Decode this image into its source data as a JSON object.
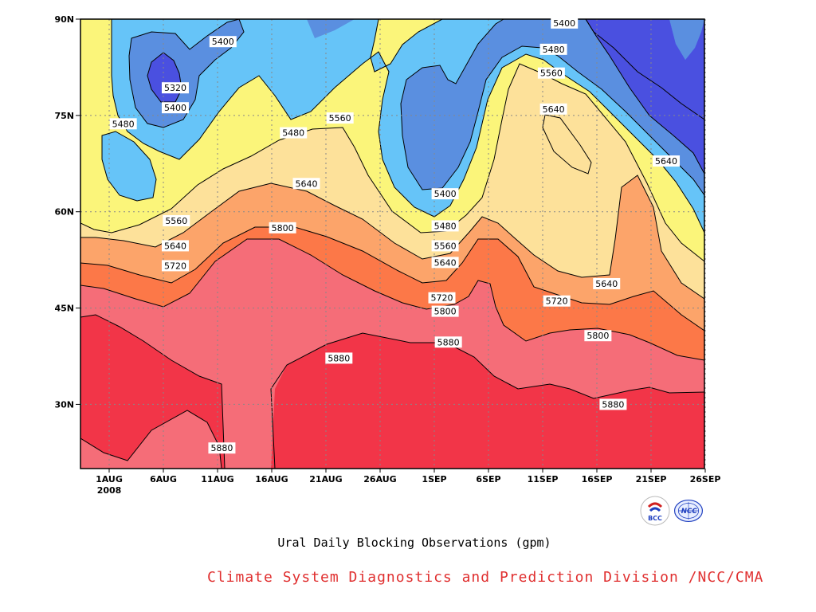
{
  "chart_data": {
    "type": "heatmap",
    "subtype": "filled-contour (time vs latitude)",
    "title": "Ural Daily Blocking Observations (gpm)",
    "x_ticks": [
      "1AUG",
      "6AUG",
      "11AUG",
      "16AUG",
      "21AUG",
      "26AUG",
      "1SEP",
      "6SEP",
      "11SEP",
      "16SEP",
      "21SEP",
      "26SEP"
    ],
    "x_year": "2008",
    "y_ticks": [
      "30N",
      "45N",
      "60N",
      "75N",
      "90N"
    ],
    "y_values": [
      30,
      45,
      60,
      75,
      90
    ],
    "ylim": [
      20,
      90
    ],
    "grid": true,
    "contour_levels": [
      5320,
      5400,
      5480,
      5560,
      5640,
      5720,
      5800,
      5880
    ],
    "colors": {
      "below_5320": "#4a50e0",
      "5320_5400": "#5a8fe0",
      "5400_5480": "#66c4f8",
      "5480_5560": "#fbf57a",
      "5560_5640": "#fde19a",
      "5640_5720": "#fca46a",
      "5720_5800": "#fc7848",
      "5800_5880": "#f56d78",
      "above_5880": "#f23548"
    },
    "contour_labels": [
      {
        "text": "5400",
        "day": 11.5,
        "lat": 86.5
      },
      {
        "text": "5320",
        "day": 7.1,
        "lat": 79.3
      },
      {
        "text": "5400",
        "day": 7.1,
        "lat": 76.2
      },
      {
        "text": "5480",
        "day": 2.3,
        "lat": 73.7
      },
      {
        "text": "5480",
        "day": 18.0,
        "lat": 72.3
      },
      {
        "text": "5560",
        "day": 22.3,
        "lat": 74.6
      },
      {
        "text": "5640",
        "day": 19.2,
        "lat": 64.4
      },
      {
        "text": "5560",
        "day": 7.2,
        "lat": 58.6
      },
      {
        "text": "5800",
        "day": 17.0,
        "lat": 57.5
      },
      {
        "text": "5640",
        "day": 7.1,
        "lat": 54.7
      },
      {
        "text": "5720",
        "day": 7.1,
        "lat": 51.6
      },
      {
        "text": "5400",
        "day": 32.0,
        "lat": 62.8
      },
      {
        "text": "5480",
        "day": 32.0,
        "lat": 57.8
      },
      {
        "text": "5560",
        "day": 32.0,
        "lat": 54.7
      },
      {
        "text": "5640",
        "day": 32.0,
        "lat": 52.1
      },
      {
        "text": "5720",
        "day": 31.7,
        "lat": 46.6
      },
      {
        "text": "5800",
        "day": 32.0,
        "lat": 44.5
      },
      {
        "text": "5880",
        "day": 22.2,
        "lat": 37.2
      },
      {
        "text": "5880",
        "day": 32.3,
        "lat": 39.7
      },
      {
        "text": "5400",
        "day": 43.0,
        "lat": 89.4
      },
      {
        "text": "5480",
        "day": 42.0,
        "lat": 85.3
      },
      {
        "text": "5560",
        "day": 41.8,
        "lat": 81.6
      },
      {
        "text": "5640",
        "day": 42.0,
        "lat": 76.0
      },
      {
        "text": "5640",
        "day": 52.4,
        "lat": 67.9
      },
      {
        "text": "5640",
        "day": 46.9,
        "lat": 48.8
      },
      {
        "text": "5720",
        "day": 42.3,
        "lat": 46.1
      },
      {
        "text": "5800",
        "day": 46.1,
        "lat": 40.7
      },
      {
        "text": "5880",
        "day": 47.5,
        "lat": 30.0
      },
      {
        "text": "5880",
        "day": 11.4,
        "lat": 23.2
      }
    ]
  },
  "caption": "Ural Daily Blocking Observations (gpm)",
  "credit": "Climate System Diagnostics and Prediction Division /NCC/CMA",
  "logos": [
    {
      "name": "bcc-logo",
      "text": "BCC"
    },
    {
      "name": "ncc-logo",
      "text": "NCC"
    }
  ]
}
